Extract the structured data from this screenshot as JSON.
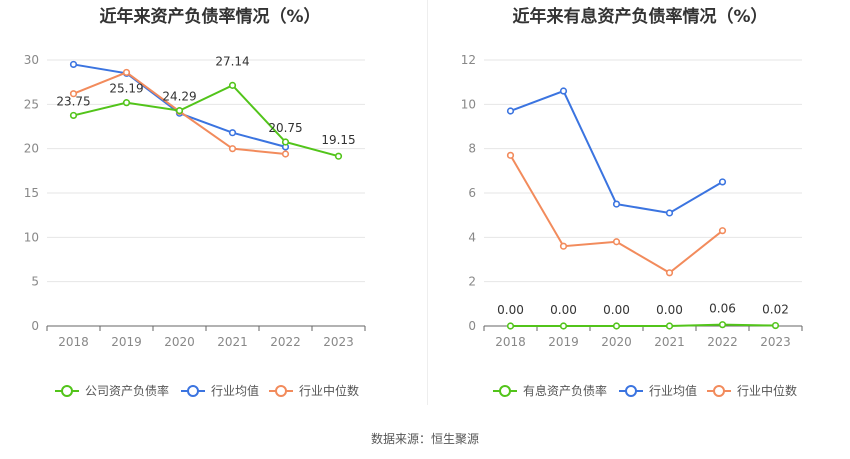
{
  "source": "数据来源：恒生聚源",
  "chart_data": [
    {
      "type": "line",
      "title": "近年来资产负债率情况（%）",
      "categories": [
        "2018",
        "2019",
        "2020",
        "2021",
        "2022",
        "2023"
      ],
      "ylim": [
        0,
        30
      ],
      "yticks": [
        "0",
        "5",
        "10",
        "15",
        "20",
        "25",
        "30"
      ],
      "grid": true,
      "legend_position": "bottom",
      "series": [
        {
          "name": "公司资产负债率",
          "color": "#52c41a",
          "values": [
            23.75,
            25.19,
            24.29,
            27.14,
            20.75,
            19.15
          ],
          "labels": [
            "23.75",
            "25.19",
            "24.29",
            "27.14",
            "20.75",
            "19.15"
          ]
        },
        {
          "name": "行业均值",
          "color": "#3b74e0",
          "values": [
            29.5,
            28.5,
            24.0,
            21.8,
            20.2,
            null
          ]
        },
        {
          "name": "行业中位数",
          "color": "#f28b5c",
          "values": [
            26.2,
            28.6,
            24.2,
            20.0,
            19.4,
            null
          ]
        }
      ]
    },
    {
      "type": "line",
      "title": "近年来有息资产负债率情况（%）",
      "categories": [
        "2018",
        "2019",
        "2020",
        "2021",
        "2022",
        "2023"
      ],
      "ylim": [
        0,
        12
      ],
      "yticks": [
        "0",
        "2",
        "4",
        "6",
        "8",
        "10",
        "12"
      ],
      "grid": true,
      "legend_position": "bottom",
      "series": [
        {
          "name": "有息资产负债率",
          "color": "#52c41a",
          "values": [
            0.0,
            0.0,
            0.0,
            0.0,
            0.06,
            0.02
          ],
          "labels": [
            "0.00",
            "0.00",
            "0.00",
            "0.00",
            "0.06",
            "0.02"
          ]
        },
        {
          "name": "行业均值",
          "color": "#3b74e0",
          "values": [
            9.7,
            10.6,
            5.5,
            5.1,
            6.5,
            null
          ]
        },
        {
          "name": "行业中位数",
          "color": "#f28b5c",
          "values": [
            7.7,
            3.6,
            3.8,
            2.4,
            4.3,
            null
          ]
        }
      ]
    }
  ]
}
